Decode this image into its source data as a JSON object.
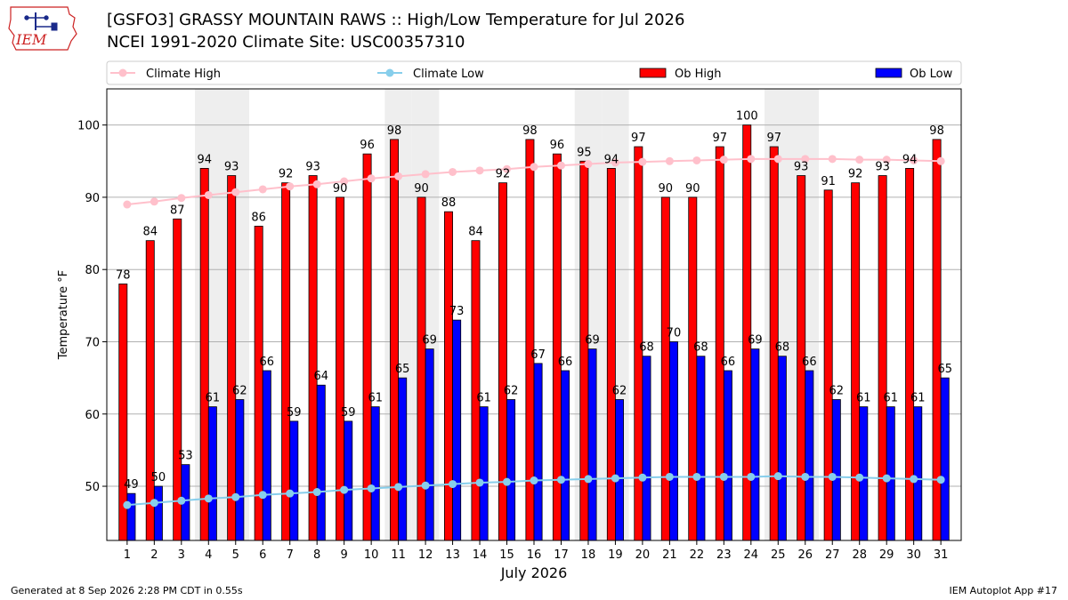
{
  "header": {
    "title_line1": "[GSFO3] GRASSY MOUNTAIN RAWS :: High/Low Temperature for Jul 2026",
    "title_line2": "NCEI 1991-2020 Climate Site: USC00357310",
    "logo_text": "IEM"
  },
  "footer": {
    "generated": "Generated at 8 Sep 2026 2:28 PM CDT in 0.55s",
    "app": "IEM Autoplot App #17"
  },
  "colors": {
    "ob_high": "#ff0000",
    "ob_low": "#0000ff",
    "climate_high": "#ffc0cb",
    "climate_low": "#87ceeb",
    "weekend_shade": "#eeeeee",
    "logo": "#cc2222"
  },
  "chart_data": {
    "type": "bar",
    "xlabel": "July 2026",
    "ylabel": "Temperature °F",
    "ylim": [
      42.5,
      105
    ],
    "yticks": [
      50,
      60,
      70,
      80,
      90,
      100
    ],
    "grid": "horizontal",
    "legend_position": "top",
    "categories": [
      "1",
      "2",
      "3",
      "4",
      "5",
      "6",
      "7",
      "8",
      "9",
      "10",
      "11",
      "12",
      "13",
      "14",
      "15",
      "16",
      "17",
      "18",
      "19",
      "20",
      "21",
      "22",
      "23",
      "24",
      "25",
      "26",
      "27",
      "28",
      "29",
      "30",
      "31"
    ],
    "shaded_days": [
      4,
      5,
      11,
      12,
      18,
      19,
      25,
      26
    ],
    "series": [
      {
        "name": "Climate High",
        "kind": "line",
        "values": [
          89.0,
          89.4,
          89.9,
          90.3,
          90.7,
          91.1,
          91.5,
          91.8,
          92.2,
          92.6,
          92.9,
          93.2,
          93.5,
          93.7,
          93.9,
          94.2,
          94.4,
          94.6,
          94.8,
          94.9,
          95.0,
          95.1,
          95.2,
          95.3,
          95.3,
          95.3,
          95.3,
          95.2,
          95.2,
          95.1,
          95.0
        ]
      },
      {
        "name": "Climate Low",
        "kind": "line",
        "values": [
          47.4,
          47.7,
          48.0,
          48.3,
          48.5,
          48.8,
          49.0,
          49.2,
          49.5,
          49.7,
          49.9,
          50.1,
          50.3,
          50.5,
          50.6,
          50.8,
          50.9,
          51.0,
          51.1,
          51.2,
          51.3,
          51.3,
          51.3,
          51.3,
          51.4,
          51.3,
          51.3,
          51.2,
          51.1,
          51.0,
          50.9
        ]
      },
      {
        "name": "Ob High",
        "kind": "bar",
        "values": [
          78,
          84,
          87,
          94,
          93,
          86,
          92,
          93,
          90,
          96,
          98,
          90,
          88,
          84,
          92,
          98,
          96,
          95,
          94,
          97,
          90,
          90,
          97,
          100,
          97,
          93,
          91,
          92,
          93,
          94,
          98
        ]
      },
      {
        "name": "Ob Low",
        "kind": "bar",
        "values": [
          49,
          50,
          53,
          61,
          62,
          66,
          59,
          64,
          59,
          61,
          65,
          69,
          73,
          61,
          62,
          67,
          66,
          69,
          62,
          68,
          70,
          68,
          66,
          69,
          68,
          66,
          62,
          61,
          61,
          61,
          65
        ]
      }
    ]
  }
}
